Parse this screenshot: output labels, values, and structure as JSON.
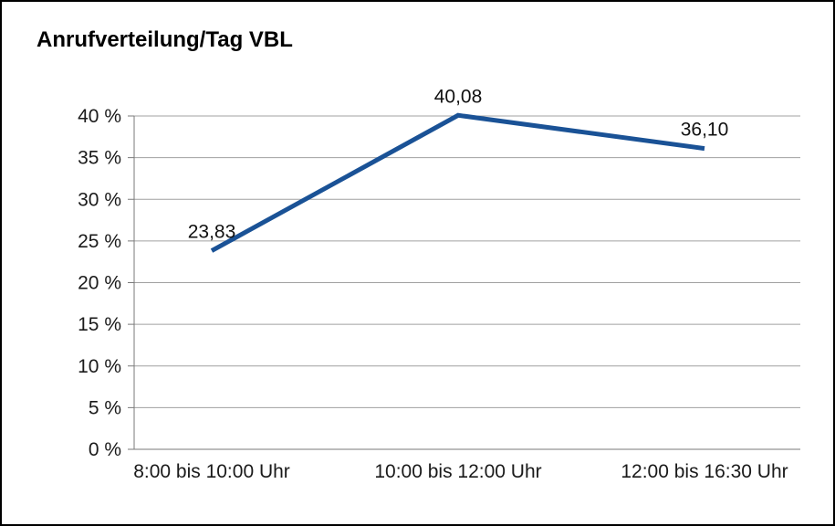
{
  "page": {
    "background_color": "#ffffff",
    "border_color": "#000000"
  },
  "chart_data": {
    "type": "line",
    "title": "Anrufverteilung/Tag VBL",
    "categories": [
      "8:00 bis 10:00 Uhr",
      "10:00 bis 12:00 Uhr",
      "12:00 bis 16:30 Uhr"
    ],
    "series": [
      {
        "name": "Anrufverteilung/Tag VBL",
        "values": [
          23.83,
          40.08,
          36.1
        ]
      }
    ],
    "value_labels": [
      "23,83",
      "40,08",
      "36,10"
    ],
    "xlabel": "",
    "ylabel": "",
    "ylim": [
      0,
      40
    ],
    "ytick_step": 5,
    "ytick_labels": [
      "0 %",
      "5 %",
      "10 %",
      "15 %",
      "20 %",
      "25 %",
      "30 %",
      "35 %",
      "40 %"
    ],
    "grid": true,
    "legend": "none",
    "line_color": "#1a5296",
    "line_width": 5,
    "grid_color": "#a0a0a0",
    "axis_color": "#7a7a7a"
  }
}
